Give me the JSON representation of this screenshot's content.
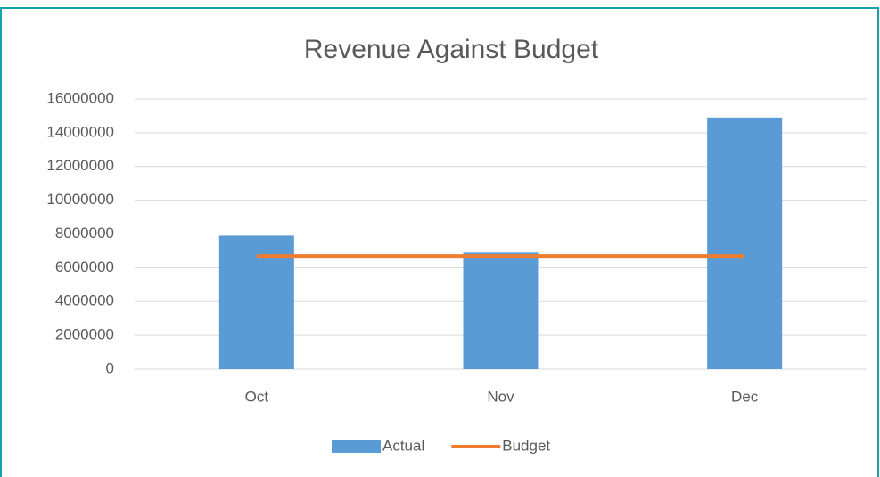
{
  "chart_data": {
    "type": "bar",
    "title": "Revenue Against Budget",
    "categories": [
      "Oct",
      "Nov",
      "Dec"
    ],
    "series": [
      {
        "name": "Actual",
        "type": "bar",
        "color": "#5b9bd5",
        "values": [
          7900000,
          6900000,
          14900000
        ]
      },
      {
        "name": "Budget",
        "type": "line",
        "color": "#ed7d31",
        "values": [
          6700000,
          6700000,
          6700000
        ]
      }
    ],
    "ylim": [
      0,
      16000000
    ],
    "yticks": [
      0,
      2000000,
      4000000,
      6000000,
      8000000,
      10000000,
      12000000,
      14000000,
      16000000
    ],
    "grid": true,
    "legend": "bottom"
  }
}
